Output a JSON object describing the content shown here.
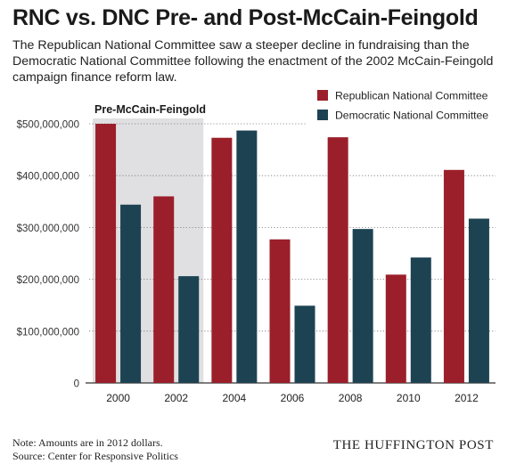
{
  "header": {
    "title": "RNC vs. DNC Pre- and Post-McCain-Feingold",
    "subtitle": "The Republican National Committee saw a steeper decline in fundraising than the Democratic National Committee following the enactment of the 2002 McCain-Feingold campaign finance reform law."
  },
  "footer": {
    "note": "Note: Amounts are in 2012 dollars.",
    "source": "Source: Center for Responsive Politics",
    "brand": "THE HUFFINGTON POST"
  },
  "colors": {
    "rnc": "#9b1f2a",
    "dnc": "#1d4353",
    "shade": "#e0e0e2",
    "axis": "#333333",
    "grid": "#777777"
  },
  "chart_data": {
    "type": "bar",
    "categories": [
      "2000",
      "2002",
      "2004",
      "2006",
      "2008",
      "2010",
      "2012"
    ],
    "series": [
      {
        "name": "Republican National Committee",
        "values": [
          500000000,
          360000000,
          473000000,
          277000000,
          474000000,
          209000000,
          411000000
        ]
      },
      {
        "name": "Democratic National Committee",
        "values": [
          344000000,
          206000000,
          487000000,
          149000000,
          297000000,
          242000000,
          317000000
        ]
      }
    ],
    "yticks": [
      {
        "value": 0,
        "label": "0"
      },
      {
        "value": 100000000,
        "label": "$100,000,000"
      },
      {
        "value": 200000000,
        "label": "$200,000,000"
      },
      {
        "value": 300000000,
        "label": "$300,000,000"
      },
      {
        "value": 400000000,
        "label": "$400,000,000"
      },
      {
        "value": 500000000,
        "label": "$500,000,000"
      }
    ],
    "ylim": [
      0,
      500000000
    ],
    "legend_position": "top-right",
    "grid": true,
    "annotation": {
      "text": "Pre-McCain-Feingold",
      "span_categories": [
        "2000",
        "2002"
      ]
    }
  }
}
